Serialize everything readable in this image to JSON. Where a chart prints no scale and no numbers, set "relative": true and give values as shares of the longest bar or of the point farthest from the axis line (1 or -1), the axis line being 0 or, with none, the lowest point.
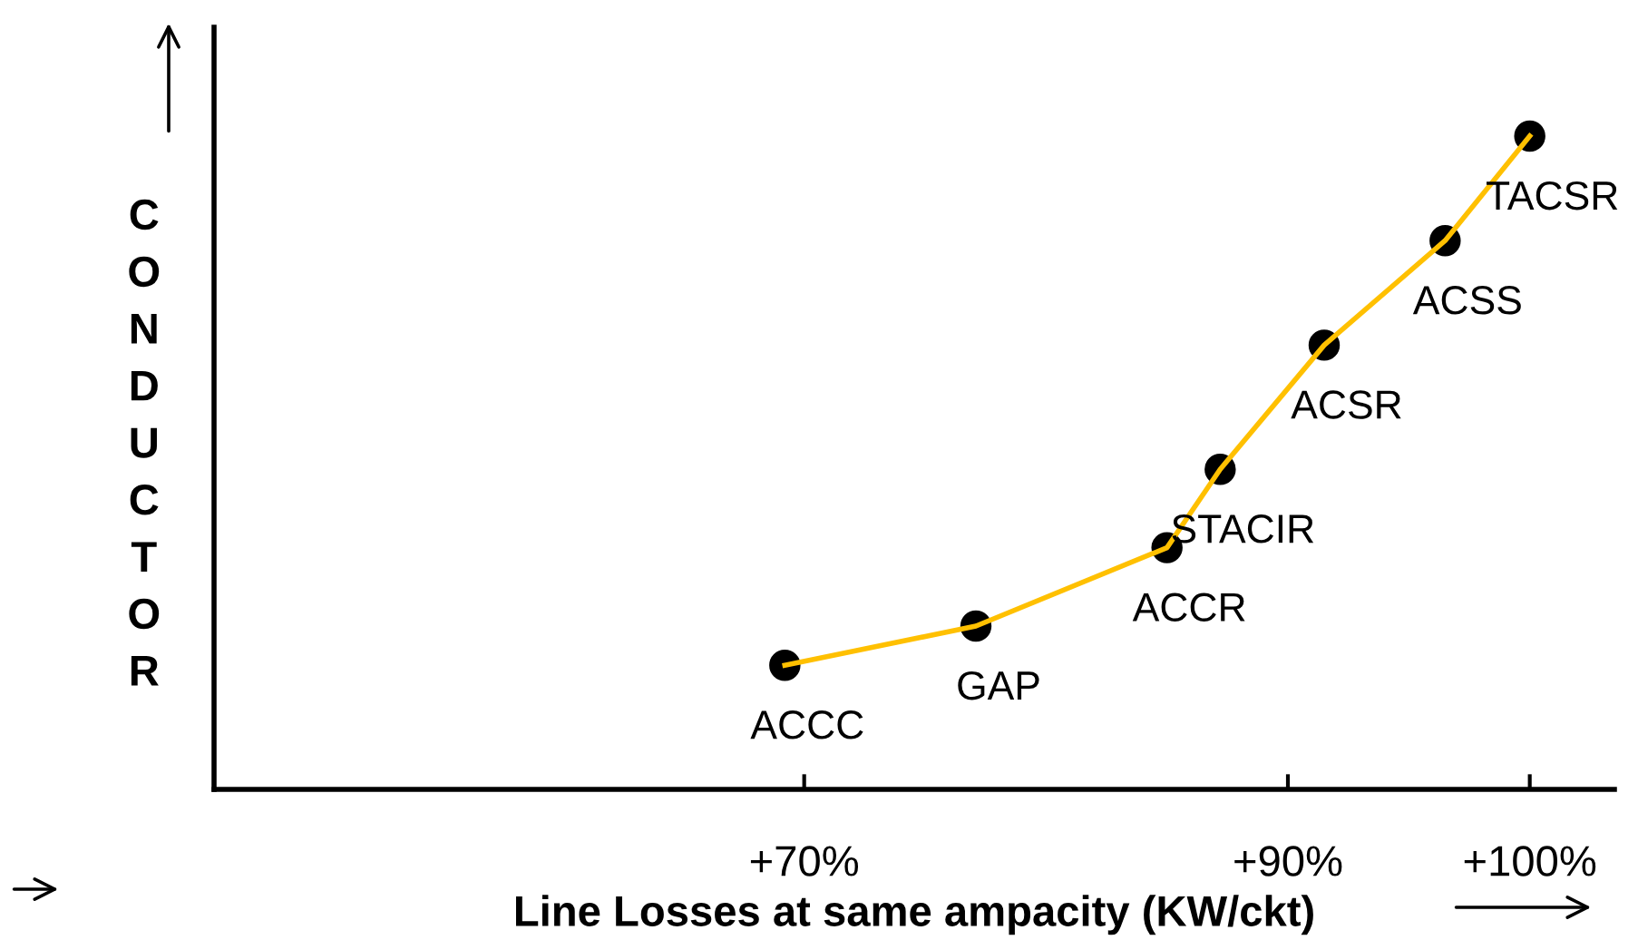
{
  "chart_data": {
    "type": "scatter",
    "relative": true,
    "xlabel": "Line Losses at same ampacity (KW/ckt)",
    "ylabel": "CONDUCTOR",
    "x": [
      69.2,
      77.1,
      85.0,
      87.2,
      91.5,
      96.5,
      100
    ],
    "xlim": [
      45.6,
      103.5
    ],
    "xticks": [
      {
        "value": 70,
        "label": "+70%"
      },
      {
        "value": 90,
        "label": "+90%"
      },
      {
        "value": 100,
        "label": "+100%"
      }
    ],
    "series": [
      {
        "type": "line",
        "color": "#ffc000",
        "values": [
          0.19,
          0.25,
          0.37,
          0.49,
          0.68,
          0.84,
          1
        ]
      },
      {
        "color": "#000000",
        "marker": "circle",
        "values": [
          0.19,
          0.25,
          0.37,
          0.49,
          0.68,
          0.84,
          1
        ]
      }
    ],
    "grid": false,
    "annotations": [
      {
        "text": "ACCC",
        "x": 69.2,
        "y": 0.19
      },
      {
        "text": "GAP",
        "x": 77.1,
        "y": 0.25
      },
      {
        "text": "ACCR",
        "x": 85.0,
        "y": 0.37
      },
      {
        "text": "STACIR",
        "x": 87.2,
        "y": 0.49
      },
      {
        "text": "ACSR",
        "x": 91.5,
        "y": 0.68
      },
      {
        "text": "ACSS",
        "x": 96.5,
        "y": 0.84
      },
      {
        "text": "TACSR",
        "x": 100,
        "y": 1
      }
    ]
  }
}
